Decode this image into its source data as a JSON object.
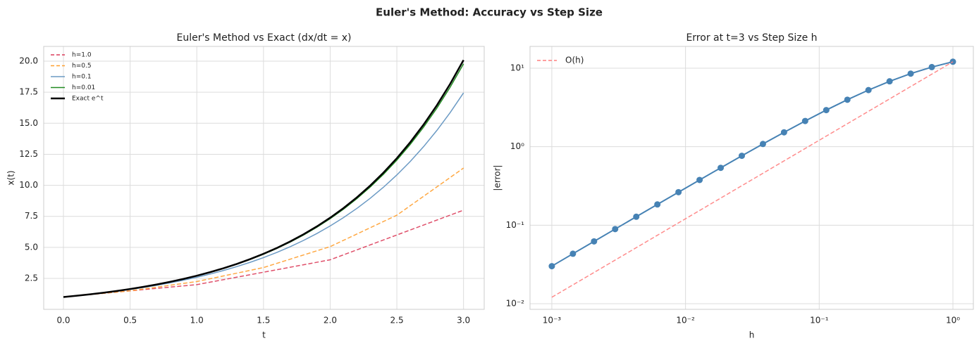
{
  "title": "Euler's Method: Accuracy vs Step Size",
  "chart_data": [
    {
      "type": "line",
      "title": "Euler's Method vs Exact (dx/dt = x)",
      "xlabel": "t",
      "ylabel": "x(t)",
      "xlim": [
        -0.148,
        3.155
      ],
      "ylim": [
        0.01,
        21.19
      ],
      "xticks": [
        {
          "value": 0,
          "label": "0.0"
        },
        0.5,
        {
          "value": 1,
          "label": "1.0"
        },
        1.5,
        {
          "value": 2,
          "label": "2.0"
        },
        2.5,
        {
          "value": 3,
          "label": "3.0"
        }
      ],
      "yticks": [
        2.5,
        {
          "value": 5,
          "label": "5.0"
        },
        7.5,
        {
          "value": 10,
          "label": "10.0"
        },
        12.5,
        {
          "value": 15,
          "label": "15.0"
        },
        17.5,
        {
          "value": 20,
          "label": "20.0"
        }
      ],
      "grid": true,
      "legend": "upper left",
      "series": [
        {
          "name": "h=1.0",
          "color": "#dc3c5a",
          "linestyle": "dashed",
          "linewidth": 1.5,
          "x": [
            0,
            1,
            2,
            3
          ],
          "values": [
            1,
            2,
            4,
            8
          ]
        },
        {
          "name": "h=0.5",
          "color": "#ff9f2e",
          "linestyle": "dashed",
          "linewidth": 1.5,
          "x": [
            0,
            0.5,
            1,
            1.5,
            2,
            2.5,
            3
          ],
          "values": [
            1,
            1.5,
            2.25,
            3.375,
            5.063,
            7.594,
            11.391
          ]
        },
        {
          "name": "h=0.1",
          "color": "#6b9ac4",
          "linestyle": "solid",
          "linewidth": 1.5,
          "x": [
            0,
            0.1,
            0.2,
            0.3,
            0.4,
            0.5,
            0.6,
            0.7,
            0.8,
            0.9,
            1,
            1.1,
            1.2,
            1.3,
            1.4,
            1.5,
            1.6,
            1.7,
            1.8,
            1.9,
            2,
            2.1,
            2.2,
            2.3,
            2.4,
            2.5,
            2.6,
            2.7,
            2.8,
            2.9,
            3
          ],
          "values": [
            1,
            1.1,
            1.21,
            1.331,
            1.464,
            1.611,
            1.772,
            1.949,
            2.144,
            2.358,
            2.594,
            2.853,
            3.138,
            3.452,
            3.797,
            4.177,
            4.595,
            5.054,
            5.56,
            6.116,
            6.728,
            7.4,
            8.14,
            8.954,
            9.85,
            10.835,
            11.918,
            13.11,
            14.421,
            15.863,
            17.449
          ]
        },
        {
          "name": "h=0.01",
          "color": "#228b22",
          "linestyle": "solid",
          "linewidth": 1.5,
          "x": [
            0,
            0.1,
            0.2,
            0.3,
            0.4,
            0.5,
            0.6,
            0.7,
            0.8,
            0.9,
            1,
            1.1,
            1.2,
            1.3,
            1.4,
            1.5,
            1.6,
            1.7,
            1.8,
            1.9,
            2,
            2.1,
            2.2,
            2.3,
            2.4,
            2.5,
            2.6,
            2.7,
            2.8,
            2.9,
            3
          ],
          "values": [
            1,
            1.105,
            1.22,
            1.348,
            1.489,
            1.645,
            1.817,
            2.007,
            2.217,
            2.449,
            2.705,
            2.988,
            3.3,
            3.646,
            4.027,
            4.448,
            4.914,
            5.428,
            5.996,
            6.623,
            7.316,
            8.081,
            8.927,
            9.861,
            10.893,
            12.032,
            13.291,
            14.682,
            16.218,
            17.914,
            19.789
          ]
        },
        {
          "name": "Exact e^t",
          "color": "#000000",
          "linestyle": "solid",
          "linewidth": 2.5,
          "x": [
            0,
            0.1,
            0.2,
            0.3,
            0.4,
            0.5,
            0.6,
            0.7,
            0.8,
            0.9,
            1,
            1.1,
            1.2,
            1.3,
            1.4,
            1.5,
            1.6,
            1.7,
            1.8,
            1.9,
            2,
            2.1,
            2.2,
            2.3,
            2.4,
            2.5,
            2.6,
            2.7,
            2.8,
            2.9,
            3
          ],
          "values": [
            1,
            1.105,
            1.221,
            1.35,
            1.492,
            1.649,
            1.822,
            2.014,
            2.226,
            2.46,
            2.718,
            3.004,
            3.32,
            3.669,
            4.055,
            4.482,
            4.953,
            5.474,
            6.05,
            6.686,
            7.389,
            8.166,
            9.025,
            9.974,
            11.023,
            12.182,
            13.464,
            14.88,
            16.445,
            18.174,
            20.086
          ]
        }
      ]
    },
    {
      "type": "line",
      "title": "Error at t=3 vs Step Size h",
      "xlabel": "h",
      "ylabel": "|error|",
      "xscale": "log",
      "yscale": "log",
      "xlim": [
        0.000687,
        1.422
      ],
      "ylim": [
        0.00848,
        18.95
      ],
      "xticks": [
        {
          "value": 0.001,
          "label": "10⁻³"
        },
        {
          "value": 0.01,
          "label": "10⁻²"
        },
        {
          "value": 0.1,
          "label": "10⁻¹"
        },
        {
          "value": 1,
          "label": "10⁰"
        }
      ],
      "yticks": [
        {
          "value": 0.01,
          "label": "10⁻²"
        },
        {
          "value": 0.1,
          "label": "10⁻¹"
        },
        {
          "value": 1,
          "label": "10⁰"
        },
        {
          "value": 10,
          "label": "10¹"
        }
      ],
      "grid": true,
      "legend": "upper left",
      "series": [
        {
          "color": "#4682b4",
          "linestyle": "solid",
          "linewidth": 2,
          "marker": "o",
          "x": [
            0.001,
            0.001438,
            0.002069,
            0.002976,
            0.004281,
            0.006158,
            0.008859,
            0.012743,
            0.01833,
            0.026367,
            0.037927,
            0.054556,
            0.078476,
            0.11288,
            0.16238,
            0.23357,
            0.33598,
            0.48329,
            0.69519,
            1
          ],
          "values": [
            0.0301,
            0.0433,
            0.0622,
            0.0893,
            0.1282,
            0.1839,
            0.2636,
            0.3771,
            0.5382,
            0.7657,
            1.084,
            1.525,
            2.127,
            2.928,
            3.968,
            5.263,
            6.803,
            8.528,
            10.333,
            12.086
          ]
        },
        {
          "name": "O(h)",
          "color": "#ff7f7f",
          "linestyle": "dashed",
          "linewidth": 1.5,
          "x": [
            0.001,
            1
          ],
          "values": [
            0.012086,
            12.086
          ]
        }
      ]
    }
  ]
}
